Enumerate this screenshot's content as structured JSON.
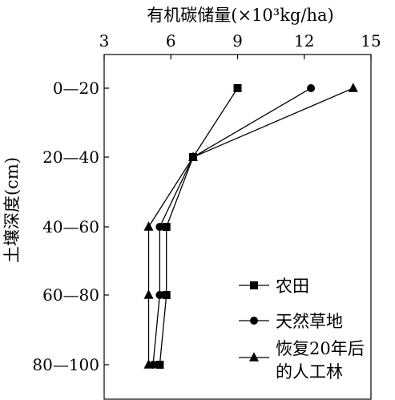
{
  "chart_data": {
    "type": "line",
    "orientation": "horizontal-values",
    "title": "有机碳储量(×10³kg/ha)",
    "xlabel": "有机碳储量(×10³kg/ha)",
    "ylabel": "土壤深度(cm)",
    "x_axis_position": "top",
    "xlim": [
      3,
      15
    ],
    "xticks": [
      "3",
      "6",
      "9",
      "12",
      "15"
    ],
    "categories": [
      "0—20",
      "20—40",
      "40—60",
      "60—80",
      "80—100"
    ],
    "grid": false,
    "legend_position": "bottom-right",
    "series": [
      {
        "name": "农田",
        "marker": "square",
        "values": [
          9.0,
          7.0,
          5.8,
          5.8,
          5.5
        ]
      },
      {
        "name": "天然草地",
        "marker": "circle",
        "values": [
          12.3,
          7.0,
          5.5,
          5.5,
          5.2
        ]
      },
      {
        "name": "恢复20年后的人工林",
        "name_lines": [
          "恢复20年后",
          "的人工林"
        ],
        "marker": "triangle",
        "values": [
          14.2,
          7.0,
          5.0,
          5.0,
          5.0
        ]
      }
    ]
  }
}
